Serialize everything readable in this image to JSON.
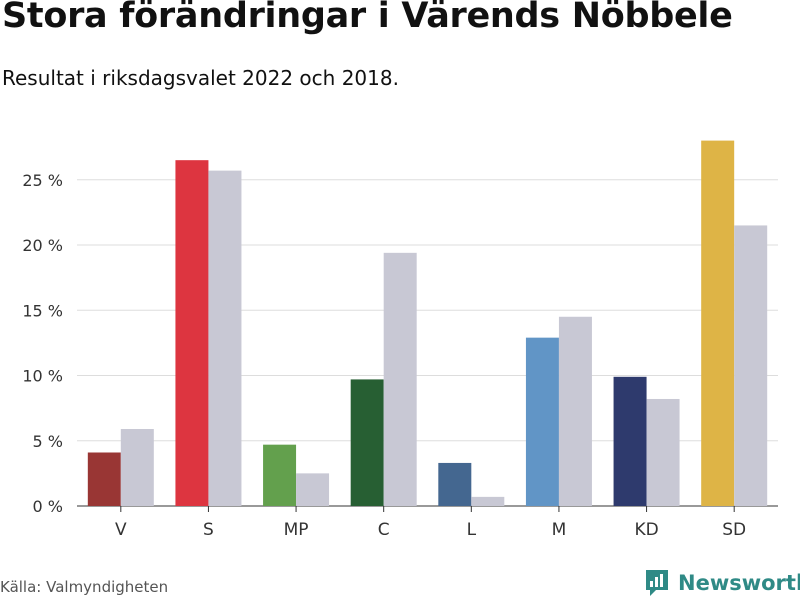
{
  "page": {
    "title": "Stora förändringar i Värends Nöbbele",
    "subtitle": "Resultat i riksdagsvalet 2022 och 2018.",
    "source": "Källa: Valmyndigheten",
    "brand": "Newsworthy",
    "brand_icon": "newsworthy-logo-icon",
    "brand_color": "#2f8a86"
  },
  "chart_data": {
    "type": "bar",
    "categories": [
      "V",
      "S",
      "MP",
      "C",
      "L",
      "M",
      "KD",
      "SD"
    ],
    "series": [
      {
        "values": [
          4.1,
          26.5,
          4.7,
          9.7,
          3.3,
          12.9,
          9.9,
          28.0
        ],
        "colors": [
          "#993634",
          "#dd3540",
          "#63a04d",
          "#275f33",
          "#446790",
          "#6195c6",
          "#2e3a6d",
          "#deb446"
        ]
      },
      {
        "values": [
          5.9,
          25.7,
          2.5,
          19.4,
          0.7,
          14.5,
          8.2,
          21.5
        ],
        "color": "#c8c8d4"
      }
    ],
    "yticks": [
      "0 %",
      "5 %",
      "10 %",
      "15 %",
      "20 %",
      "25 %"
    ],
    "ylim": [
      0,
      28
    ],
    "grid": true
  }
}
